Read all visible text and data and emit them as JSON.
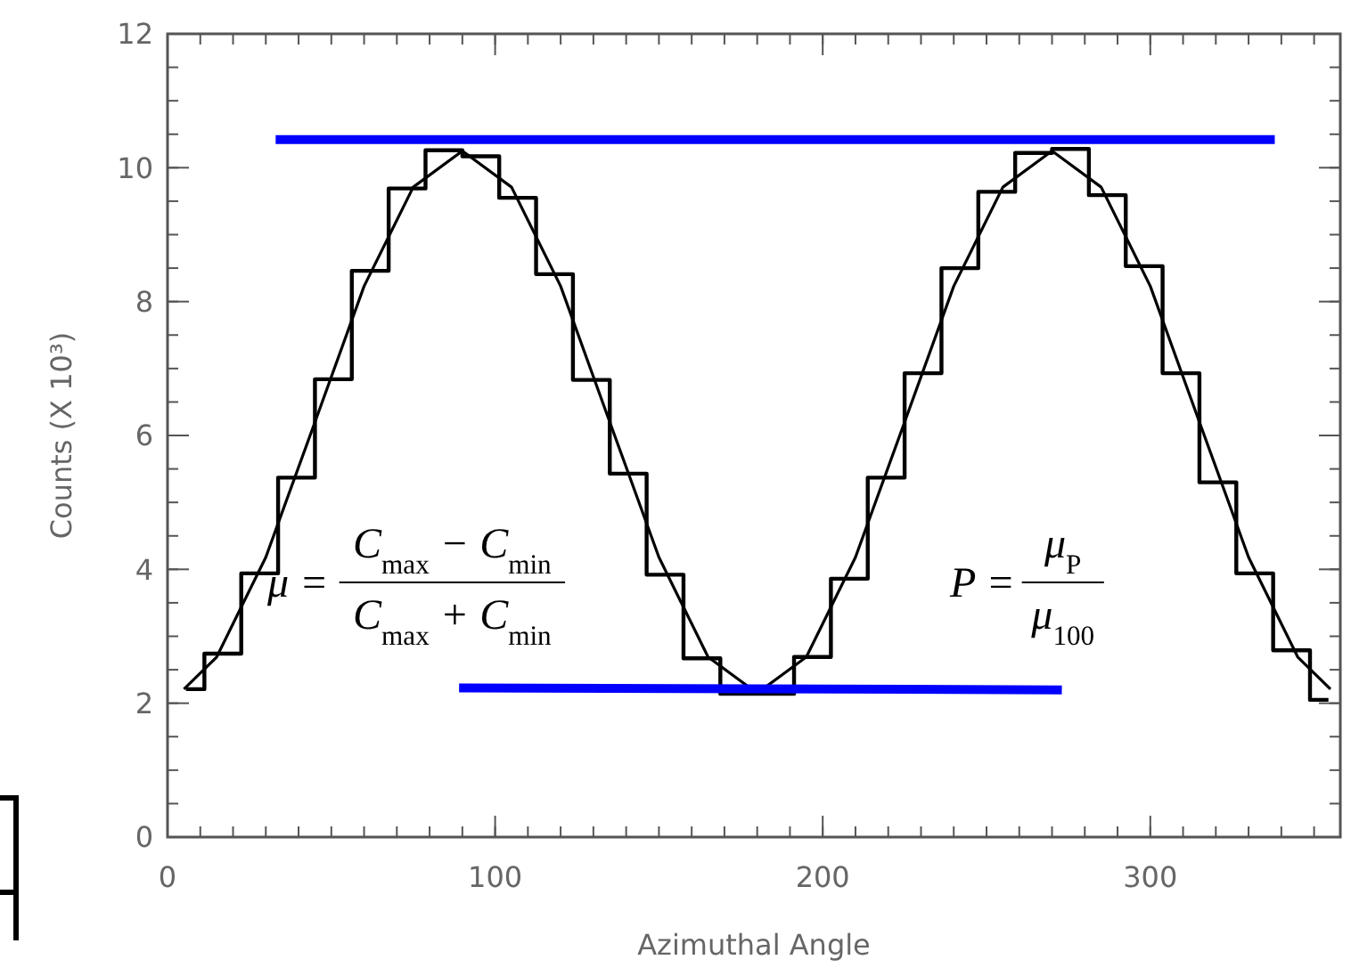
{
  "chart_data": {
    "type": "line",
    "xlabel": "Azimuthal Angle",
    "ylabel": "Counts (X 10³)",
    "xlim": [
      0,
      358
    ],
    "xticks": [
      0,
      100,
      200,
      300
    ],
    "ylim": [
      0,
      12
    ],
    "yticks": [
      0,
      2,
      4,
      6,
      8,
      10,
      12
    ],
    "grid": false,
    "series": [
      {
        "type": "step",
        "color": "#000000",
        "x": [
          5.625,
          16.875,
          28.125,
          39.375,
          50.625,
          61.875,
          73.125,
          84.375,
          95.625,
          106.875,
          118.125,
          129.375,
          140.625,
          151.875,
          163.125,
          174.375,
          185.625,
          196.875,
          208.125,
          219.375,
          230.625,
          241.875,
          253.125,
          264.375,
          275.625,
          286.875,
          298.125,
          309.375,
          320.625,
          331.875,
          343.125,
          354.375
        ],
        "values": [
          2.21,
          2.74,
          3.94,
          5.37,
          6.84,
          8.46,
          9.69,
          10.26,
          10.17,
          9.55,
          8.41,
          6.83,
          5.43,
          3.92,
          2.67,
          2.14,
          2.14,
          2.69,
          3.86,
          5.37,
          6.93,
          8.5,
          9.64,
          10.22,
          10.28,
          9.59,
          8.53,
          6.93,
          5.3,
          3.94,
          2.79,
          2.05
        ]
      },
      {
        "type": "line",
        "color": "#000000",
        "x": [
          5,
          15,
          30,
          45,
          60,
          75,
          90,
          105,
          120,
          135,
          150,
          165,
          180,
          195,
          210,
          225,
          240,
          255,
          270,
          285,
          300,
          315,
          330,
          345,
          355
        ],
        "values": [
          2.21,
          2.69,
          4.18,
          6.2,
          8.23,
          9.71,
          10.25,
          9.71,
          8.23,
          6.2,
          4.18,
          2.69,
          2.15,
          2.69,
          4.18,
          6.2,
          8.23,
          9.71,
          10.25,
          9.71,
          8.23,
          6.2,
          4.18,
          2.69,
          2.21
        ]
      },
      {
        "type": "line",
        "color": "#0000ff",
        "x": [
          33,
          338
        ],
        "values": [
          10.42,
          10.42
        ]
      },
      {
        "type": "line",
        "color": "#0000ff",
        "x": [
          89,
          273
        ],
        "values": [
          2.23,
          2.2
        ]
      }
    ],
    "annotations": [
      "μ =",
      "C$_{max}$ − C$_{min}$",
      "C$_{max}$ + C$_{min}$",
      "P =",
      "μ$_{P}$",
      "μ$_{100}$"
    ]
  }
}
